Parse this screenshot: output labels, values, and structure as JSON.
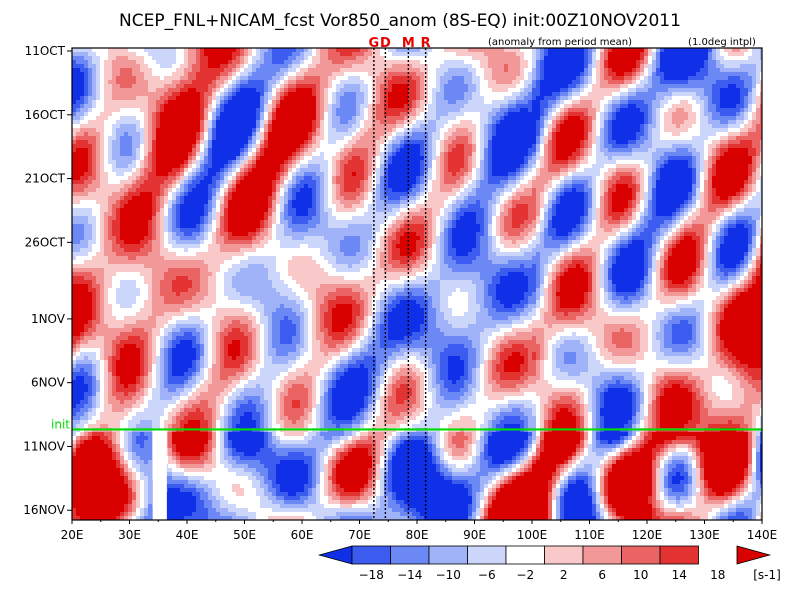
{
  "chart_data": {
    "type": "heatmap",
    "title": "NCEP_FNL+NICAM_fcst Vor850_anom (8S-EQ) init:00Z10NOV2011",
    "subtitle_left": "(anomaly from period mean)",
    "subtitle_right": "(1.0deg intpl)",
    "x_axis": {
      "range": [
        20,
        140
      ],
      "ticks": [
        20,
        30,
        40,
        50,
        60,
        70,
        80,
        90,
        100,
        110,
        120,
        130,
        140
      ],
      "tick_labels": [
        "20E",
        "30E",
        "40E",
        "50E",
        "60E",
        "70E",
        "80E",
        "90E",
        "100E",
        "110E",
        "120E",
        "130E",
        "140E"
      ]
    },
    "y_axis": {
      "range": [
        "11OCT",
        "17NOV"
      ],
      "tick_labels": [
        "11OCT",
        "16OCT",
        "21OCT",
        "26OCT",
        "1NOV",
        "6NOV",
        "11NOV",
        "16NOV"
      ],
      "tick_days": [
        0,
        5,
        10,
        15,
        21,
        26,
        31,
        36
      ],
      "days_total": 37
    },
    "init_line": {
      "label": "init",
      "day": 29.9,
      "color": "#00dd00"
    },
    "markers": [
      {
        "label": "G",
        "lon": 72.5
      },
      {
        "label": "D",
        "lon": 74.5
      },
      {
        "label": "M",
        "lon": 78.5
      },
      {
        "label": "R",
        "lon": 81.5
      }
    ],
    "marker_color": "#e60000",
    "missing_band": {
      "lon_start": 34,
      "lon_end": 36.5,
      "day_start": 30,
      "day_end": 37
    },
    "colorbar": {
      "unit": "[s-1]",
      "levels": [
        -18,
        -14,
        -10,
        -6,
        -2,
        2,
        6,
        10,
        14,
        18
      ],
      "colors": [
        "#1030e8",
        "#3c5cf0",
        "#6c88f4",
        "#a0b2f8",
        "#ccd6fb",
        "#ffffff",
        "#f9c8c8",
        "#f29898",
        "#eb6464",
        "#e23232",
        "#d90000"
      ]
    }
  }
}
